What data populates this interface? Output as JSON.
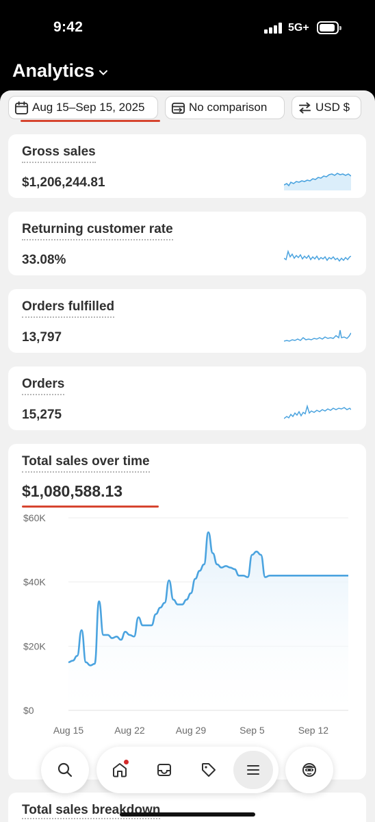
{
  "status_bar": {
    "time": "9:42",
    "network": "5G+"
  },
  "header": {
    "title": "Analytics"
  },
  "filters": {
    "date_range": "Aug 15–Sep 15, 2025",
    "comparison": "No comparison",
    "currency": "USD $"
  },
  "metrics": [
    {
      "title": "Gross sales",
      "value": "$1,206,244.81"
    },
    {
      "title": "Returning customer rate",
      "value": "33.08%"
    },
    {
      "title": "Orders fulfilled",
      "value": "13,797"
    },
    {
      "title": "Orders",
      "value": "15,275"
    }
  ],
  "total_sales_card": {
    "title": "Total sales over time",
    "total": "$1,080,588.13"
  },
  "chart_data": {
    "type": "line",
    "title": "Total sales over time",
    "x_tick_labels": [
      "Aug 15",
      "Aug 22",
      "Aug 29",
      "Sep 5",
      "Sep 12"
    ],
    "y_tick_labels": [
      "$0",
      "$20K",
      "$40K",
      "$60K"
    ],
    "ylim": [
      0,
      60000
    ],
    "grid": true,
    "series": [
      {
        "color": "#4aa3df",
        "x": [
          0,
          0.5,
          1,
          1.5,
          2,
          2.5,
          3,
          3.5,
          4,
          4.5,
          5,
          5.5,
          6,
          6.5,
          7,
          7.5,
          8,
          8.5,
          9,
          9.5,
          10,
          10.5,
          11,
          11.5,
          12,
          12.5,
          13,
          13.5,
          14,
          14.5,
          15,
          15.5,
          16,
          16.5,
          17,
          17.5,
          18,
          18.5,
          19,
          19.5,
          20,
          20.5,
          21,
          21.5,
          22,
          22.5,
          23,
          23.5,
          24,
          24.5,
          25,
          25.5,
          26,
          26.5,
          27,
          27.5,
          28,
          28.5,
          29,
          29.5,
          30,
          30.5,
          31,
          31.5,
          32
        ],
        "values": [
          15000,
          15500,
          17000,
          25000,
          15000,
          14000,
          14500,
          34000,
          23500,
          23500,
          22500,
          23000,
          22000,
          24500,
          23500,
          23000,
          29000,
          26500,
          26500,
          26500,
          30000,
          32000,
          33500,
          40500,
          34500,
          33000,
          33000,
          34500,
          36500,
          41000,
          43500,
          45500,
          55500,
          49000,
          45500,
          44500,
          45000,
          44500,
          44000,
          42000,
          42000,
          41500,
          48500,
          49500,
          48500,
          41500,
          42000,
          42000,
          42000,
          42000,
          42000,
          42000,
          42000,
          42000,
          42000,
          42000,
          42000,
          42000,
          42000,
          42000,
          42000,
          42000,
          42000,
          42000,
          42000
        ]
      }
    ]
  },
  "partial_card": {
    "title": "Total sales breakdown"
  },
  "tab_bar": {
    "items": [
      {
        "icon": "search-icon"
      },
      {
        "icon": "home-icon"
      },
      {
        "icon": "inbox-icon"
      },
      {
        "icon": "tag-icon"
      },
      {
        "icon": "menu-icon"
      },
      {
        "icon": "avatar-icon"
      }
    ]
  },
  "colors": {
    "accent_red": "#d6442f",
    "chart_blue": "#4aa3df",
    "sheet_bg": "#f1f1f1"
  }
}
